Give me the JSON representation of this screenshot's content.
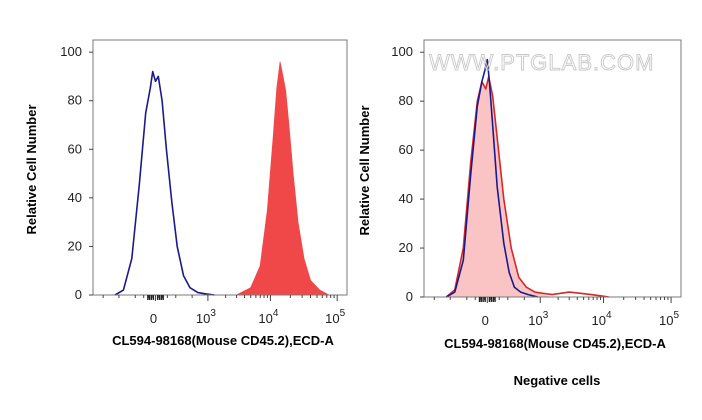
{
  "chart_data": [
    {
      "type": "area",
      "xlabel": "CL594-98168(Mouse CD45.2),ECD-A",
      "ylabel": "Relative Cell Number",
      "ylim": [
        0,
        105
      ],
      "y_ticks": [
        "0",
        "20",
        "40",
        "60",
        "80",
        "100"
      ],
      "x_scale": "biexponential",
      "x_tick_labels": [
        {
          "base": "0",
          "exp": ""
        },
        {
          "base": "10",
          "exp": "3"
        },
        {
          "base": "10",
          "exp": "4"
        },
        {
          "base": "10",
          "exp": "5"
        }
      ],
      "grid": false,
      "series": [
        {
          "style": "line",
          "color": "#1a1a8c",
          "x": [
            -600,
            -400,
            -250,
            -150,
            -80,
            -40,
            -20,
            0,
            20,
            50,
            90,
            150,
            220,
            320,
            450,
            650,
            900,
            1300
          ],
          "y": [
            0,
            2,
            15,
            45,
            75,
            85,
            92,
            88,
            90,
            80,
            60,
            38,
            20,
            8,
            3,
            1,
            0.5,
            0
          ]
        },
        {
          "style": "filled",
          "color": "#f04848",
          "x": [
            3000,
            5000,
            7000,
            9000,
            11000,
            12500,
            14000,
            15500,
            17000,
            19000,
            22000,
            26000,
            32000,
            40000,
            55000,
            75000
          ],
          "y": [
            0,
            3,
            12,
            35,
            65,
            85,
            96,
            90,
            84,
            70,
            50,
            30,
            15,
            6,
            2,
            0
          ]
        }
      ]
    },
    {
      "type": "area",
      "xlabel": "CL594-98168(Mouse CD45.2),ECD-A",
      "ylabel": "Relative Cell Number",
      "ylim": [
        0,
        105
      ],
      "y_ticks": [
        "0",
        "20",
        "40",
        "60",
        "80",
        "100"
      ],
      "x_scale": "biexponential",
      "x_tick_labels": [
        {
          "base": "0",
          "exp": ""
        },
        {
          "base": "10",
          "exp": "3"
        },
        {
          "base": "10",
          "exp": "4"
        },
        {
          "base": "10",
          "exp": "5"
        }
      ],
      "grid": false,
      "series": [
        {
          "style": "filled",
          "color": "#fbc4c4",
          "x": [
            -600,
            -400,
            -250,
            -150,
            -80,
            -40,
            -10,
            10,
            40,
            80,
            150,
            250,
            380,
            550,
            800,
            1100,
            1500
          ],
          "y": [
            0,
            3,
            20,
            55,
            80,
            88,
            85,
            90,
            82,
            65,
            40,
            20,
            8,
            4,
            2,
            1,
            0
          ]
        },
        {
          "style": "line",
          "color": "#d62828",
          "x": [
            -600,
            -400,
            -250,
            -150,
            -80,
            -40,
            -10,
            10,
            40,
            80,
            150,
            250,
            380,
            550,
            800,
            1100,
            1600,
            2200,
            3000,
            4500,
            6500,
            9000,
            12000
          ],
          "y": [
            0,
            3,
            20,
            55,
            80,
            88,
            85,
            90,
            82,
            65,
            40,
            20,
            8,
            4,
            2,
            1.5,
            1,
            1.5,
            2,
            1.5,
            1,
            0.5,
            0
          ]
        },
        {
          "style": "line",
          "color": "#1a1a8c",
          "x": [
            -600,
            -400,
            -250,
            -150,
            -80,
            -40,
            -15,
            0,
            15,
            40,
            80,
            150,
            220,
            300,
            420,
            600,
            900
          ],
          "y": [
            0,
            2,
            15,
            50,
            78,
            88,
            93,
            97,
            88,
            70,
            45,
            22,
            10,
            4,
            2,
            1,
            0
          ]
        }
      ]
    }
  ],
  "watermark": "WWW.PTGLAB.COM",
  "caption": "Negative cells"
}
